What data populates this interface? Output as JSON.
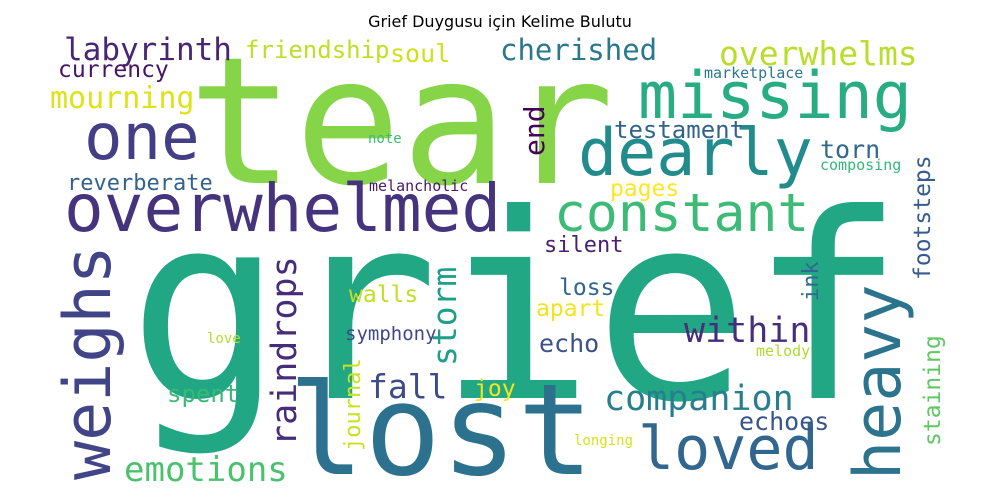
{
  "chart_data": {
    "type": "wordcloud",
    "title": "Grief Duygusu için Kelime Bulutu",
    "words": [
      {
        "text": "tear",
        "color": "#86d549"
      },
      {
        "text": "grief",
        "color": "#22a785"
      },
      {
        "text": "lost",
        "color": "#2c728e"
      },
      {
        "text": "overwhelmed",
        "color": "#46337e"
      },
      {
        "text": "missing",
        "color": "#27ad81"
      },
      {
        "text": "dearly",
        "color": "#228c8d"
      },
      {
        "text": "one",
        "color": "#433e85"
      },
      {
        "text": "constant",
        "color": "#3bbb75"
      },
      {
        "text": "weighs",
        "color": "#414487"
      },
      {
        "text": "heavy",
        "color": "#2c738e"
      },
      {
        "text": "loved",
        "color": "#31678e"
      },
      {
        "text": "companion",
        "color": "#277f8e"
      },
      {
        "text": "within",
        "color": "#472d7b"
      },
      {
        "text": "emotions",
        "color": "#4ac16d"
      },
      {
        "text": "raindrops",
        "color": "#472c7a"
      },
      {
        "text": "storm",
        "color": "#1f9e89"
      },
      {
        "text": "fall",
        "color": "#3e4c8a"
      },
      {
        "text": "labyrinth",
        "color": "#482576"
      },
      {
        "text": "currency",
        "color": "#471365"
      },
      {
        "text": "mourning",
        "color": "#dde318"
      },
      {
        "text": "friendship",
        "color": "#bddf26"
      },
      {
        "text": "soul",
        "color": "#d0e11c"
      },
      {
        "text": "cherished",
        "color": "#2a788e"
      },
      {
        "text": "overwhelms",
        "color": "#b8de29"
      },
      {
        "text": "marketplace",
        "color": "#2a788e"
      },
      {
        "text": "end",
        "color": "#440154"
      },
      {
        "text": "testament",
        "color": "#33638d"
      },
      {
        "text": "torn",
        "color": "#31688e"
      },
      {
        "text": "composing",
        "color": "#35b779"
      },
      {
        "text": "footsteps",
        "color": "#365c8d"
      },
      {
        "text": "note",
        "color": "#3dbc74"
      },
      {
        "text": "reverberate",
        "color": "#33628d"
      },
      {
        "text": "melancholic",
        "color": "#48186a"
      },
      {
        "text": "pages",
        "color": "#fde725"
      },
      {
        "text": "silent",
        "color": "#482173"
      },
      {
        "text": "loss",
        "color": "#32648e"
      },
      {
        "text": "ink",
        "color": "#31688e"
      },
      {
        "text": "walls",
        "color": "#c2df23"
      },
      {
        "text": "apart",
        "color": "#f1e51d"
      },
      {
        "text": "symphony",
        "color": "#3f4889"
      },
      {
        "text": "echo",
        "color": "#3b528b"
      },
      {
        "text": "love",
        "color": "#b5de2b"
      },
      {
        "text": "melody",
        "color": "#addc30"
      },
      {
        "text": "staining",
        "color": "#5ec962"
      },
      {
        "text": "journal",
        "color": "#cae11f"
      },
      {
        "text": "joy",
        "color": "#f4e61e"
      },
      {
        "text": "spent",
        "color": "#38b977"
      },
      {
        "text": "echoes",
        "color": "#3a548c"
      },
      {
        "text": "longing",
        "color": "#d8e219"
      }
    ]
  }
}
